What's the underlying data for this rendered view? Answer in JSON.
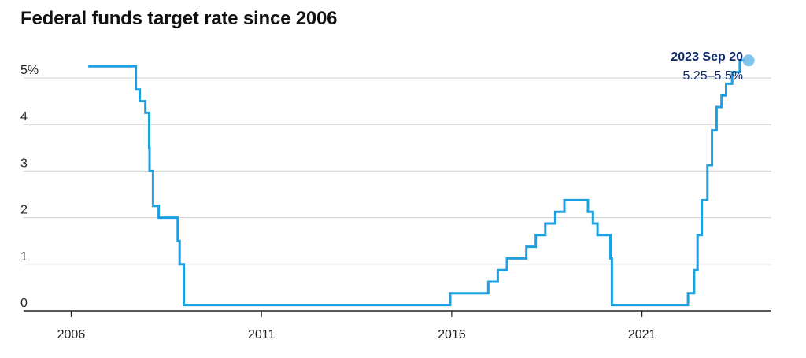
{
  "title": "Federal funds target rate since 2006",
  "colors": {
    "line": "#1ca0e0",
    "annotation": "#0e2a6b",
    "marker": "#6cb8e8",
    "grid": "#d0d0d0",
    "axis": "#222222"
  },
  "chart_data": {
    "type": "line",
    "title": "Federal funds target rate since 2006",
    "xlabel": "",
    "ylabel": "",
    "x_range": [
      2004.75,
      2024.4
    ],
    "ylim": [
      0,
      5.5
    ],
    "grid": true,
    "y_ticks": [
      {
        "value": 0,
        "label": "0"
      },
      {
        "value": 1,
        "label": "1"
      },
      {
        "value": 2,
        "label": "2"
      },
      {
        "value": 3,
        "label": "3"
      },
      {
        "value": 4,
        "label": "4"
      },
      {
        "value": 5,
        "label": "5%"
      }
    ],
    "x_ticks": [
      {
        "value": 2006,
        "label": "2006"
      },
      {
        "value": 2011,
        "label": "2011"
      },
      {
        "value": 2016,
        "label": "2016"
      },
      {
        "value": 2021,
        "label": "2021"
      }
    ],
    "series": [
      {
        "style": "step",
        "points": [
          [
            2006.45,
            5.25
          ],
          [
            2007.7,
            4.75
          ],
          [
            2007.8,
            4.5
          ],
          [
            2007.95,
            4.25
          ],
          [
            2008.05,
            3.5
          ],
          [
            2008.06,
            3.0
          ],
          [
            2008.15,
            2.25
          ],
          [
            2008.3,
            2.0
          ],
          [
            2008.8,
            1.5
          ],
          [
            2008.85,
            1.0
          ],
          [
            2008.96,
            0.125
          ],
          [
            2015.96,
            0.375
          ],
          [
            2016.96,
            0.625
          ],
          [
            2017.21,
            0.875
          ],
          [
            2017.45,
            1.125
          ],
          [
            2017.96,
            1.375
          ],
          [
            2018.21,
            1.625
          ],
          [
            2018.46,
            1.875
          ],
          [
            2018.72,
            2.125
          ],
          [
            2018.96,
            2.375
          ],
          [
            2019.58,
            2.125
          ],
          [
            2019.71,
            1.875
          ],
          [
            2019.83,
            1.625
          ],
          [
            2020.17,
            1.125
          ],
          [
            2020.21,
            0.125
          ],
          [
            2022.21,
            0.375
          ],
          [
            2022.37,
            0.875
          ],
          [
            2022.46,
            1.625
          ],
          [
            2022.57,
            2.375
          ],
          [
            2022.72,
            3.125
          ],
          [
            2022.84,
            3.875
          ],
          [
            2022.96,
            4.375
          ],
          [
            2023.09,
            4.625
          ],
          [
            2023.21,
            4.875
          ],
          [
            2023.37,
            5.125
          ],
          [
            2023.57,
            5.375
          ],
          [
            2023.72,
            5.375
          ]
        ]
      }
    ],
    "annotation": {
      "x": 2023.72,
      "y": 5.375,
      "date": "2023 Sep 20",
      "value": "5.25–5.5%"
    }
  }
}
